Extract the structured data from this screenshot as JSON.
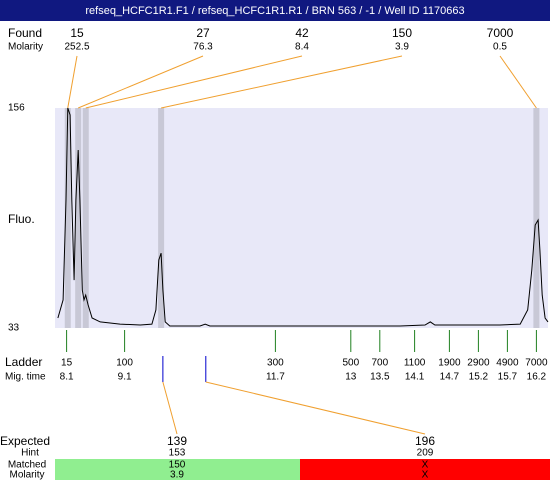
{
  "header": {
    "title": "refseq_HCFC1R1.F1 / refseq_HCFC1R1.R1 / BRN 563 / -1 / Well ID 1170663"
  },
  "chart_data": {
    "type": "line",
    "y_axis_label": "Fluo.",
    "ylim": [
      33,
      156
    ],
    "yticks": [
      33,
      156
    ],
    "xlim": [
      7.9,
      16.4
    ],
    "plot_color": "#e8e8f8",
    "band_color": "#c8c8d6",
    "x": [
      7.95,
      8.04,
      8.09,
      8.12,
      8.16,
      8.19,
      8.23,
      8.26,
      8.3,
      8.33,
      8.37,
      8.4,
      8.43,
      8.47,
      8.54,
      8.68,
      9.02,
      9.37,
      9.57,
      9.64,
      9.69,
      9.73,
      9.76,
      9.8,
      9.88,
      10.4,
      10.49,
      10.57,
      12.12,
      13.85,
      14.28,
      14.37,
      14.45,
      15.57,
      15.92,
      16.05,
      16.12,
      16.18,
      16.23,
      16.26,
      16.3,
      16.35,
      16.4
    ],
    "series": [
      {
        "color": "#000000",
        "values": [
          38.6,
          48.7,
          104.6,
          156,
          152.1,
          104.6,
          59.8,
          104.6,
          132.5,
          104.6,
          54.2,
          48.7,
          51.4,
          45.9,
          38.6,
          36.4,
          35.2,
          34.7,
          35.2,
          43.1,
          71.0,
          74.9,
          54.2,
          36.4,
          34.1,
          34.1,
          35.2,
          34.1,
          34.1,
          34.1,
          34.7,
          36.4,
          34.7,
          34.7,
          35.2,
          43.1,
          65.4,
          90.6,
          93.4,
          76.6,
          51.4,
          38.6,
          36.4
        ]
      }
    ],
    "found": {
      "label": "Found",
      "sublabel": "Molarity",
      "color": "#f0a030",
      "sizes": [
        15,
        27,
        42,
        150,
        7000
      ],
      "molarity": [
        252.5,
        76.3,
        8.4,
        3.9,
        0.5
      ],
      "times": [
        8.12,
        8.3,
        8.43,
        9.73,
        16.2
      ]
    },
    "ladder": {
      "label": "Ladder",
      "sublabel": "Mig. time",
      "color": "#208020",
      "sizes": [
        15,
        100,
        300,
        500,
        700,
        1100,
        1900,
        2900,
        4900,
        7000
      ],
      "times": [
        8.1,
        9.1,
        11.7,
        13,
        13.5,
        14.1,
        14.7,
        15.2,
        15.7,
        16.2
      ]
    },
    "expected": {
      "label": "Expected",
      "hint_label": "Hint",
      "matched_label": "Matched",
      "molarity_label": "Molarity",
      "tick_color": "#0000cc",
      "line_color": "#f0a030",
      "items": [
        {
          "size": 139,
          "time": 9.76,
          "hint": 153,
          "matched": 150,
          "molarity": 3.9,
          "color": "#90ee90"
        },
        {
          "size": 196,
          "time": 10.5,
          "hint": 209,
          "matched": "X",
          "molarity": "X",
          "color": "#ff0000"
        }
      ]
    }
  }
}
